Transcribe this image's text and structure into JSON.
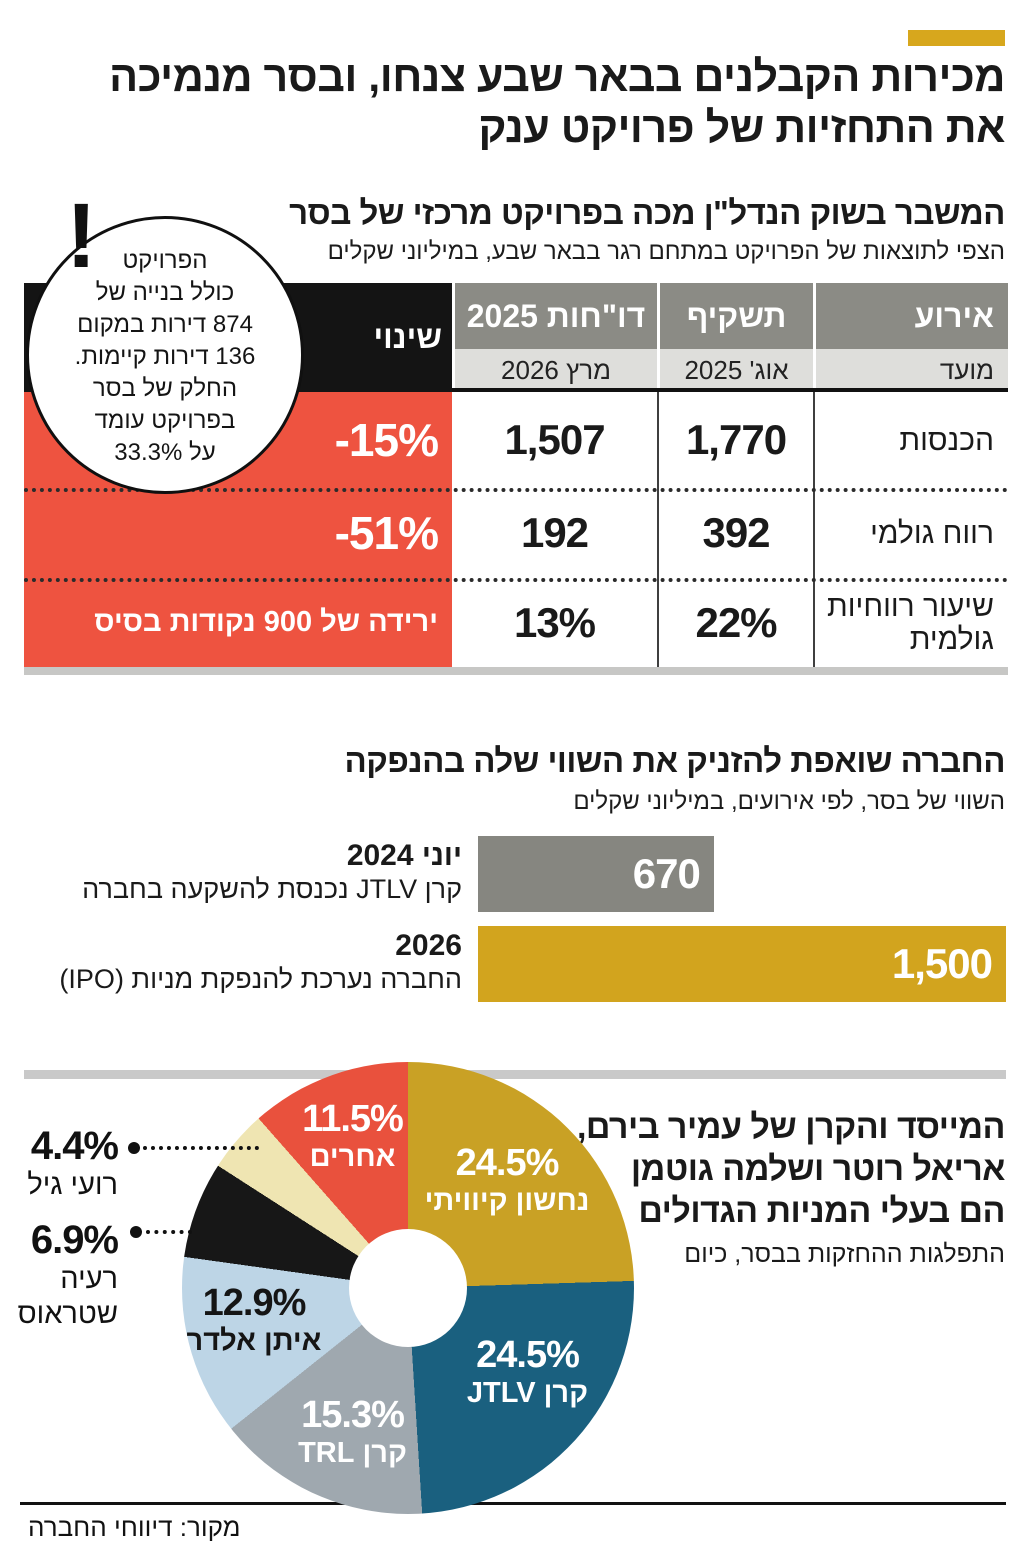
{
  "accent_color": "#D7A71D",
  "title": {
    "line1": "מכירות הקבלנים בבאר שבע צנחו, ובסר מנמיכה",
    "line2": "את התחזיות של פרויקט ענק"
  },
  "source": "מקור: דיווחי החברה",
  "chart_data": [
    {
      "type": "table",
      "title": "המשבר בשוק הנדל\"ן מכה בפרויקט מרכזי של בסר",
      "subtitle": "הצפי לתוצאות של הפרויקט במתחם רגר בבאר שבע, במיליוני שקלים",
      "columns": {
        "event": "אירוע",
        "prospectus": "תשקיף",
        "reports": "דו\"חות 2025",
        "change": "שינוי"
      },
      "date_row": {
        "event": "מועד",
        "prospectus": "אוג' 2025",
        "reports": "מרץ 2026"
      },
      "rows": [
        {
          "event": "הכנסות",
          "prospectus": "1,770",
          "reports": "1,507",
          "change": "-15%"
        },
        {
          "event": "רווח גולמי",
          "prospectus": "392",
          "reports": "192",
          "change": "-51%"
        },
        {
          "event": "שיעור רווחיות גולמית",
          "prospectus": "22%",
          "reports": "13%",
          "change": "ירידה של 900 נקודות בסיס"
        }
      ],
      "callout_mark": "!",
      "callout_text": "הפרויקט\nכולל בנייה של\n874 דירות במקום\n136 דירות קיימות.\nהחלק של בסר\nבפרויקט עומד\nעל 33.3%",
      "colors": {
        "header_bg": "#8B8B85",
        "date_bg": "#DEDEDB",
        "change_header_bg": "#141414",
        "change_bg": "#EE5340"
      }
    },
    {
      "type": "bar",
      "orientation": "horizontal",
      "title": "החברה שואפת להזניק את השווי שלה בהנפקה",
      "subtitle": "השווי של בסר, לפי אירועים, במיליוני שקלים",
      "xmax": 1500,
      "bars": [
        {
          "period": "יוני 2024",
          "event": "קרן JTLV נכנסת להשקעה בחברה",
          "value": 670,
          "value_label": "670",
          "color": "#868680"
        },
        {
          "period": "2026",
          "event": "החברה נערכת להנפקת מניות (IPO)",
          "value": 1500,
          "value_label": "1,500",
          "color": "#D2A41E"
        }
      ]
    },
    {
      "type": "pie",
      "donut": true,
      "title_lines": {
        "line1": "המייסד והקרן של עמיר בירם,",
        "line2": "אריאל רוטר ושלמה גוטמן",
        "line3": "הם בעלי המניות הגדולים"
      },
      "subtitle": "התפלגות ההחזקות בבסר, כיום",
      "slices": [
        {
          "name": "נחשון קיוויתי",
          "value": 24.5,
          "pct": "24.5%",
          "color": "#C9A125"
        },
        {
          "name": "קרן JTLV",
          "value": 24.5,
          "pct": "24.5%",
          "color": "#1A607F"
        },
        {
          "name": "קרן TRL",
          "value": 15.3,
          "pct": "15.3%",
          "color": "#9FA8AF"
        },
        {
          "name": "איתן אלדר",
          "value": 12.9,
          "pct": "12.9%",
          "color": "#BDD5E6"
        },
        {
          "name": "רעיה שטראוס",
          "value": 6.9,
          "pct": "6.9%",
          "color": "#171717"
        },
        {
          "name": "רועי גיל",
          "value": 4.4,
          "pct": "4.4%",
          "color": "#EFE5B2"
        },
        {
          "name": "אחרים",
          "value": 11.5,
          "pct": "11.5%",
          "color": "#E9513D"
        }
      ]
    }
  ]
}
